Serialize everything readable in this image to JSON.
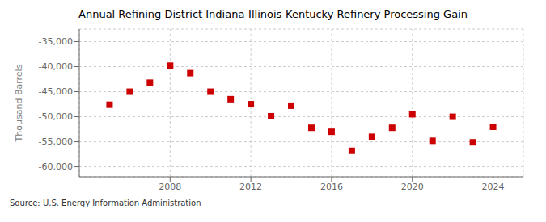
{
  "chart_data": {
    "type": "scatter",
    "title": "Annual Refining District Indiana-Illinois-Kentucky Refinery Processing Gain",
    "y_label": "Thousand Barrels",
    "annotation": "Source: U.S. Energy Information Administration",
    "x": [
      2005,
      2006,
      2007,
      2008,
      2009,
      2010,
      2011,
      2012,
      2013,
      2014,
      2015,
      2016,
      2017,
      2018,
      2019,
      2020,
      2021,
      2022,
      2023,
      2024
    ],
    "values": [
      -47600,
      -45000,
      -43200,
      -39800,
      -41300,
      -45000,
      -46500,
      -47500,
      -49900,
      -47800,
      -52200,
      -53000,
      -56800,
      -54000,
      -52200,
      -49500,
      -54800,
      -50000,
      -55100,
      -52000
    ],
    "color": "#cc0000",
    "marker": "square",
    "xlim": [
      2003.5,
      2025.5
    ],
    "xticks": [
      2008,
      2012,
      2016,
      2020,
      2024
    ],
    "ylim": [
      -62000,
      -32500
    ],
    "yticks": [
      {
        "value": -60000,
        "label": "-60,000"
      },
      {
        "value": -55000,
        "label": "-55,000"
      },
      {
        "value": -50000,
        "label": "-50,000"
      },
      {
        "value": -45000,
        "label": "-45,000"
      },
      {
        "value": -40000,
        "label": "-40,000"
      },
      {
        "value": -35000,
        "label": "-35,000"
      }
    ],
    "grid": true
  }
}
